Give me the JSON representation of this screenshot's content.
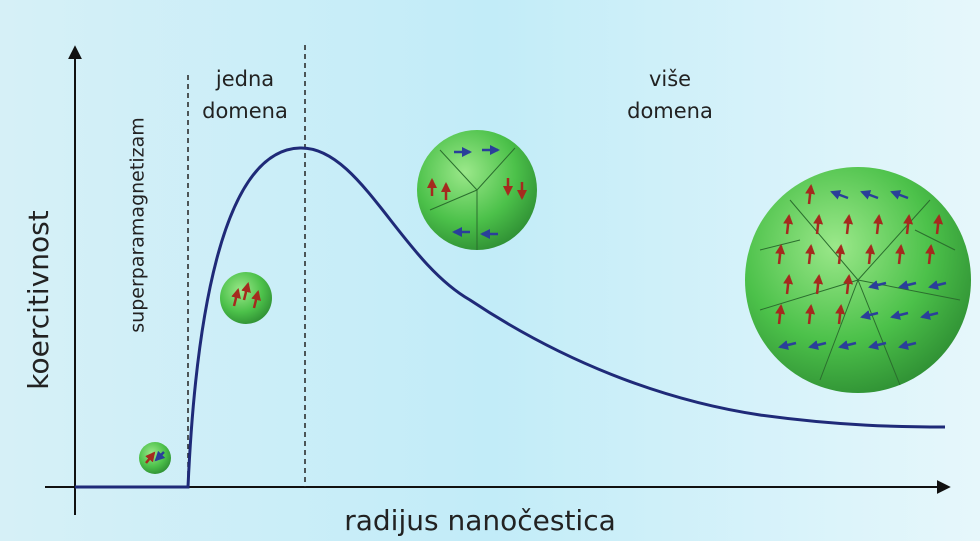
{
  "y_axis_label": "koercitivnost",
  "x_axis_label": "radijus nanočestica",
  "regions": [
    {
      "label_lines": [
        "superparamagnetizam"
      ]
    },
    {
      "label_lines": [
        "jedna",
        "domena"
      ]
    },
    {
      "label_lines": [
        "više",
        "domena"
      ]
    }
  ]
}
